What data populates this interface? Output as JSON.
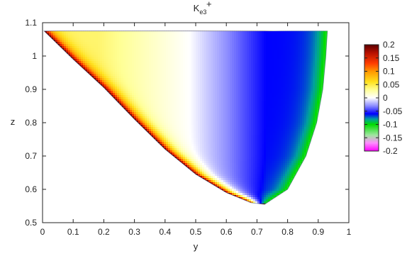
{
  "chart_data": {
    "type": "heatmap",
    "title": {
      "base": "K",
      "superscript": "+",
      "subscript": "e3"
    },
    "xlabel": "y",
    "ylabel": "z",
    "xlim": [
      0,
      1
    ],
    "ylim": [
      0.5,
      1.1
    ],
    "x_ticks": [
      "0",
      "0.1",
      "0.2",
      "0.3",
      "0.4",
      "0.5",
      "0.6",
      "0.7",
      "0.8",
      "0.9",
      "1"
    ],
    "y_ticks": [
      "0.5",
      "0.6",
      "0.7",
      "0.8",
      "0.9",
      "1",
      "1.1"
    ],
    "region": {
      "apex": [
        0.005,
        1.075
      ],
      "bottom": [
        0.725,
        0.555
      ],
      "top_right": [
        0.93,
        1.075
      ],
      "lower_boundary_samples": [
        {
          "y": 0.005,
          "z": 1.075
        },
        {
          "y": 0.1,
          "z": 0.99
        },
        {
          "y": 0.2,
          "z": 0.905
        },
        {
          "y": 0.3,
          "z": 0.81
        },
        {
          "y": 0.4,
          "z": 0.72
        },
        {
          "y": 0.5,
          "z": 0.645
        },
        {
          "y": 0.6,
          "z": 0.59
        },
        {
          "y": 0.68,
          "z": 0.56
        },
        {
          "y": 0.725,
          "z": 0.555
        }
      ],
      "right_boundary_samples": [
        {
          "y": 0.725,
          "z": 0.555
        },
        {
          "y": 0.8,
          "z": 0.6
        },
        {
          "y": 0.86,
          "z": 0.7
        },
        {
          "y": 0.895,
          "z": 0.8
        },
        {
          "y": 0.915,
          "z": 0.9
        },
        {
          "y": 0.925,
          "z": 1.0
        },
        {
          "y": 0.93,
          "z": 1.075
        }
      ]
    },
    "colorbar": {
      "min": -0.2,
      "max": 0.2,
      "tick_labels": [
        "0.2",
        "0.15",
        "0.1",
        "0.05",
        "0",
        "-0.05",
        "-0.1",
        "-0.15",
        "-0.2"
      ],
      "stops": [
        {
          "value": 0.2,
          "color": "#5a0000"
        },
        {
          "value": 0.17,
          "color": "#b40f00"
        },
        {
          "value": 0.13,
          "color": "#ff3c00"
        },
        {
          "value": 0.1,
          "color": "#ff9600"
        },
        {
          "value": 0.06,
          "color": "#ffe11e"
        },
        {
          "value": 0.03,
          "color": "#ffff96"
        },
        {
          "value": 0.0,
          "color": "#ffffff"
        },
        {
          "value": -0.03,
          "color": "#8c8cff"
        },
        {
          "value": -0.06,
          "color": "#0000ff"
        },
        {
          "value": -0.08,
          "color": "#00a0a0"
        },
        {
          "value": -0.1,
          "color": "#00dc00"
        },
        {
          "value": -0.14,
          "color": "#a0e6a0"
        },
        {
          "value": -0.17,
          "color": "#ff8cff"
        },
        {
          "value": -0.2,
          "color": "#ff00ff"
        }
      ]
    },
    "field_description_values": {
      "near_lower_edge": 0.2,
      "left_interior": 0.04,
      "zero_contour_y": 0.48,
      "mid_right": -0.06,
      "near_right_edge": -0.11
    },
    "grid": false,
    "legend": "right-colorbar"
  }
}
